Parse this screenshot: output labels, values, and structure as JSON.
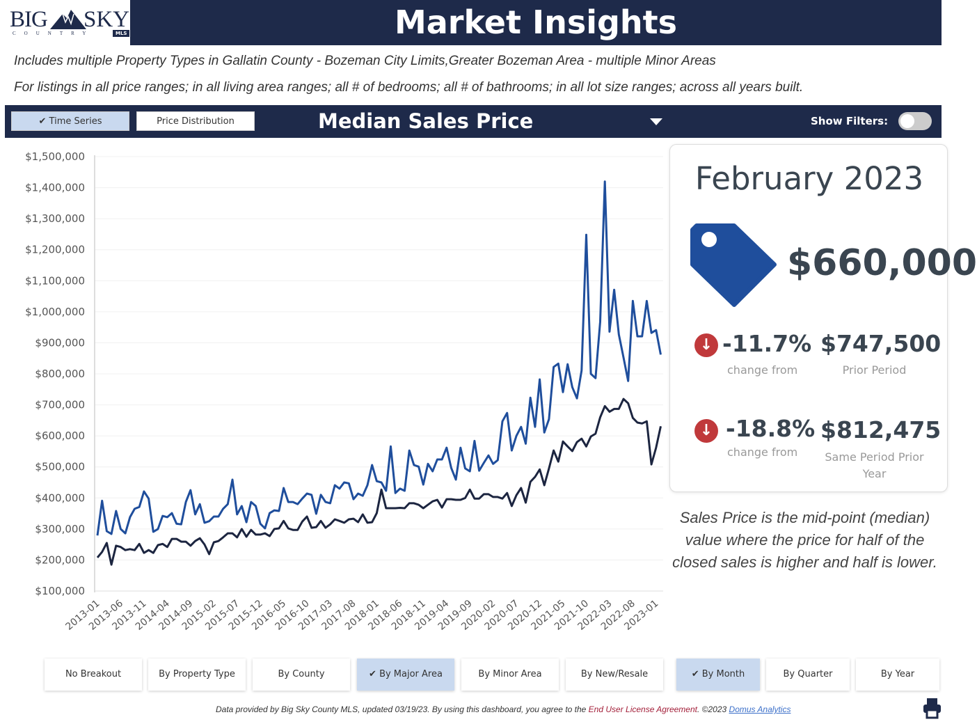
{
  "logo": {
    "text_left": "BIG",
    "text_right": "SKY",
    "tagline": "COUNTRY",
    "badge": "MLS"
  },
  "header": {
    "title": "Market Insights"
  },
  "subtitles": [
    "Includes multiple Property Types in Gallatin County - Bozeman City Limits,Greater Bozeman Area - multiple Minor Areas",
    "For listings in all price ranges; in all living area ranges; all # of bedrooms; all # of bathrooms; in all lot size ranges; across all years built."
  ],
  "toolbar": {
    "time_series": "Time Series",
    "price_distribution": "Price Distribution",
    "metric": "Median Sales Price",
    "show_filters": "Show Filters:",
    "show_filters_on": false
  },
  "summary": {
    "period": "February 2023",
    "value": "$660,000",
    "rows": [
      {
        "pct": "-11.7%",
        "pct_label": "change from",
        "compare_value": "$747,500",
        "compare_label": "Prior Period"
      },
      {
        "pct": "-18.8%",
        "pct_label": "change from",
        "compare_value": "$812,475",
        "compare_label": "Same Period Prior Year"
      }
    ],
    "note": "Sales Price is the mid-point (median) value where the price for half of the closed sales is higher and half is lower."
  },
  "breakouts": [
    {
      "label": "No Breakout",
      "active": false
    },
    {
      "label": "By Property Type",
      "active": false
    },
    {
      "label": "By County",
      "active": false
    },
    {
      "label": "By Major Area",
      "active": true
    },
    {
      "label": "By Minor Area",
      "active": false
    },
    {
      "label": "By New/Resale",
      "active": false
    }
  ],
  "periods": [
    {
      "label": "By Month",
      "active": true
    },
    {
      "label": "By Quarter",
      "active": false
    },
    {
      "label": "By Year",
      "active": false
    }
  ],
  "footer": {
    "text1": "Data provided by Big Sky County MLS, updated 03/19/23.  By using this dashboard, you agree to the ",
    "eula": "End User License Agreement",
    "text2": ".  ©2023 ",
    "domus": "Domus Analytics"
  },
  "colors": {
    "navy": "#1e2a4a",
    "series_blue": "#1f4e9c",
    "series_dark": "#1c2540",
    "active_button": "#c9d9ef",
    "down_red": "#c0393b"
  },
  "chart_data": {
    "type": "line",
    "ylim": [
      100000,
      1500000
    ],
    "y_ticks": [
      "$100,000",
      "$200,000",
      "$300,000",
      "$400,000",
      "$500,000",
      "$600,000",
      "$700,000",
      "$800,000",
      "$900,000",
      "$1,000,000",
      "$1,100,000",
      "$1,200,000",
      "$1,300,000",
      "$1,400,000",
      "$1,500,000"
    ],
    "x_ticks": [
      "2013-01",
      "2013-06",
      "2013-11",
      "2014-04",
      "2014-09",
      "2015-02",
      "2015-07",
      "2015-12",
      "2016-05",
      "2016-10",
      "2017-03",
      "2017-08",
      "2018-01",
      "2018-06",
      "2018-11",
      "2019-04",
      "2019-09",
      "2020-02",
      "2020-07",
      "2020-12",
      "2021-05",
      "2021-10",
      "2022-03",
      "2022-08",
      "2023-01"
    ],
    "x": [
      "2013-01",
      "2013-02",
      "2013-03",
      "2013-04",
      "2013-05",
      "2013-06",
      "2013-07",
      "2013-08",
      "2013-09",
      "2013-10",
      "2013-11",
      "2013-12",
      "2014-01",
      "2014-02",
      "2014-03",
      "2014-04",
      "2014-05",
      "2014-06",
      "2014-07",
      "2014-08",
      "2014-09",
      "2014-10",
      "2014-11",
      "2014-12",
      "2015-01",
      "2015-02",
      "2015-03",
      "2015-04",
      "2015-05",
      "2015-06",
      "2015-07",
      "2015-08",
      "2015-09",
      "2015-10",
      "2015-11",
      "2015-12",
      "2016-01",
      "2016-02",
      "2016-03",
      "2016-04",
      "2016-05",
      "2016-06",
      "2016-07",
      "2016-08",
      "2016-09",
      "2016-10",
      "2016-11",
      "2016-12",
      "2017-01",
      "2017-02",
      "2017-03",
      "2017-04",
      "2017-05",
      "2017-06",
      "2017-07",
      "2017-08",
      "2017-09",
      "2017-10",
      "2017-11",
      "2017-12",
      "2018-01",
      "2018-02",
      "2018-03",
      "2018-04",
      "2018-05",
      "2018-06",
      "2018-07",
      "2018-08",
      "2018-09",
      "2018-10",
      "2018-11",
      "2018-12",
      "2019-01",
      "2019-02",
      "2019-03",
      "2019-04",
      "2019-05",
      "2019-06",
      "2019-07",
      "2019-08",
      "2019-09",
      "2019-10",
      "2019-11",
      "2019-12",
      "2020-01",
      "2020-02",
      "2020-03",
      "2020-04",
      "2020-05",
      "2020-06",
      "2020-07",
      "2020-08",
      "2020-09",
      "2020-10",
      "2020-11",
      "2020-12",
      "2021-01",
      "2021-02",
      "2021-03",
      "2021-04",
      "2021-05",
      "2021-06",
      "2021-07",
      "2021-08",
      "2021-09",
      "2021-10",
      "2021-11",
      "2021-12",
      "2022-01",
      "2022-02",
      "2022-03",
      "2022-04",
      "2022-05",
      "2022-06",
      "2022-07",
      "2022-08",
      "2022-09",
      "2022-10",
      "2022-11",
      "2022-12",
      "2023-01",
      "2023-02"
    ],
    "grid": true,
    "series": [
      {
        "color": "#1f4e9c",
        "values": [
          279000,
          391000,
          293000,
          284000,
          358000,
          300000,
          286000,
          338000,
          365000,
          371000,
          421000,
          398000,
          291000,
          300000,
          342000,
          338000,
          351000,
          317000,
          315000,
          387000,
          425000,
          347000,
          380000,
          320000,
          325000,
          340000,
          340000,
          365000,
          380000,
          459000,
          347000,
          374000,
          322000,
          387000,
          374000,
          317000,
          302000,
          351000,
          360000,
          358000,
          432000,
          387000,
          387000,
          380000,
          398000,
          414000,
          410000,
          349000,
          410000,
          387000,
          383000,
          441000,
          430000,
          450000,
          447000,
          396000,
          414000,
          407000,
          441000,
          506000,
          454000,
          450000,
          423000,
          566000,
          416000,
          430000,
          423000,
          553000,
          506000,
          501000,
          443000,
          510000,
          486000,
          524000,
          524000,
          562000,
          497000,
          459000,
          562000,
          495000,
          486000,
          584000,
          488000,
          513000,
          537000,
          510000,
          522000,
          647000,
          674000,
          553000,
          600000,
          629000,
          575000,
          723000,
          629000,
          782000,
          611000,
          654000,
          822000,
          833000,
          741000,
          831000,
          757000,
          721000,
          811000,
          1248000,
          800000,
          786000,
          968000,
          1420000,
          936000,
          1071000,
          927000,
          853000,
          777000,
          1035000,
          921000,
          921000,
          1035000,
          932000,
          941000,
          862000
        ]
      },
      {
        "color": "#1c2540",
        "values": [
          208000,
          226000,
          255000,
          185000,
          246000,
          242000,
          232000,
          235000,
          232000,
          252000,
          223000,
          232000,
          223000,
          248000,
          252000,
          242000,
          268000,
          268000,
          259000,
          259000,
          246000,
          261000,
          270000,
          250000,
          219000,
          257000,
          261000,
          273000,
          286000,
          286000,
          273000,
          300000,
          275000,
          297000,
          282000,
          282000,
          286000,
          277000,
          300000,
          302000,
          326000,
          302000,
          297000,
          297000,
          324000,
          340000,
          304000,
          306000,
          326000,
          304000,
          315000,
          331000,
          326000,
          320000,
          331000,
          333000,
          322000,
          347000,
          320000,
          322000,
          351000,
          427000,
          367000,
          367000,
          367000,
          368000,
          367000,
          383000,
          383000,
          378000,
          367000,
          378000,
          389000,
          394000,
          369000,
          396000,
          396000,
          394000,
          394000,
          400000,
          427000,
          398000,
          398000,
          412000,
          412000,
          403000,
          403000,
          398000,
          416000,
          374000,
          409000,
          432000,
          385000,
          452000,
          468000,
          492000,
          441000,
          495000,
          553000,
          517000,
          582000,
          566000,
          551000,
          580000,
          591000,
          566000,
          598000,
          607000,
          660000,
          696000,
          678000,
          687000,
          687000,
          719000,
          705000,
          658000,
          643000,
          640000,
          647000,
          508000,
          562000,
          631000
        ]
      }
    ]
  }
}
